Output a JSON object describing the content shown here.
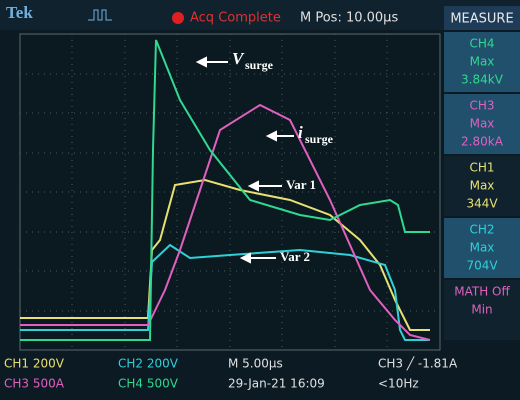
{
  "header": {
    "brand": "Tek",
    "acq": "Acq Complete",
    "mpos": "M Pos: 10.00µs",
    "measure": "MEASURE"
  },
  "measure": [
    {
      "ch": "CH4",
      "stat": "Max",
      "value": "3.84kV"
    },
    {
      "ch": "CH3",
      "stat": "Max",
      "value": "2.80kA"
    },
    {
      "ch": "CH1",
      "stat": "Max",
      "value": "344V"
    },
    {
      "ch": "CH2",
      "stat": "Max",
      "value": "704V"
    },
    {
      "ch": "MATH Off",
      "stat": "Min"
    }
  ],
  "footer": {
    "row1": [
      "CH1  200V",
      "CH2  200V",
      "M 5.00µs",
      "CH3 ╱ -1.81A"
    ],
    "row2": [
      "CH3  500A",
      "CH4  500V",
      "29-Jan-21 16:09",
      "<10Hz"
    ]
  },
  "annotations": {
    "v_main": "V",
    "v_sub": "surge",
    "i_main": "i",
    "i_sub": "surge",
    "var1": "Var 1",
    "var2": "Var 2"
  }
}
